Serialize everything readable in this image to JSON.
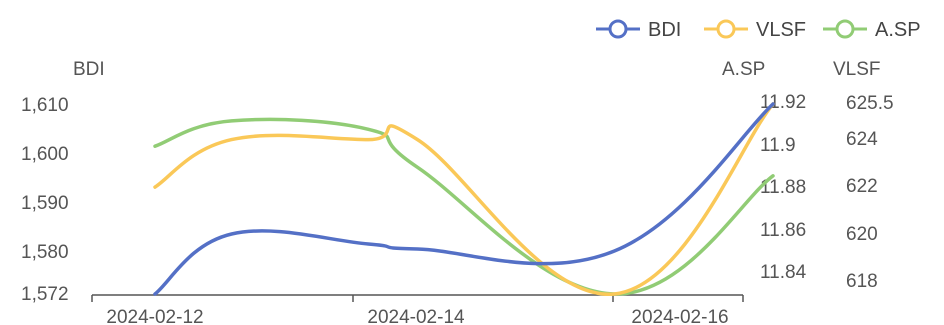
{
  "chart_data": {
    "type": "line",
    "x": [
      "2024-02-12",
      "2024-02-13",
      "2024-02-14",
      "2024-02-15",
      "2024-02-16"
    ],
    "x_tick_labels": [
      "2024-02-12",
      "2024-02-14",
      "2024-02-16"
    ],
    "series": [
      {
        "name": "BDI",
        "axis": "left",
        "color": "#5470c6",
        "points": [
          [
            "2024-02-12",
            1572
          ],
          [
            "2024-02-12 14:00",
            1584
          ],
          [
            "2024-02-13 15:00",
            1582
          ],
          [
            "2024-02-14",
            1581
          ],
          [
            "2024-02-15 12:00",
            1580.6
          ],
          [
            "2024-02-16 17:00",
            1610
          ]
        ]
      },
      {
        "name": "VLSF",
        "axis": "right-outer",
        "color": "#fac858",
        "points": [
          [
            "2024-02-12",
            622
          ],
          [
            "2024-02-12 14:00",
            624
          ],
          [
            "2024-02-13 15:00",
            624
          ],
          [
            "2024-02-14",
            624
          ],
          [
            "2024-02-15 12:00",
            617.5
          ],
          [
            "2024-02-16 17:00",
            625.5
          ]
        ]
      },
      {
        "name": "A.SP",
        "axis": "right-inner",
        "color": "#91cc75",
        "points": [
          [
            "2024-02-12",
            11.9
          ],
          [
            "2024-02-12 14:00",
            11.912
          ],
          [
            "2024-02-13 15:00",
            11.908
          ],
          [
            "2024-02-14",
            11.89
          ],
          [
            "2024-02-15 12:00",
            11.83
          ],
          [
            "2024-02-16 17:00",
            11.886
          ]
        ]
      }
    ],
    "axes": {
      "left": {
        "title": "BDI",
        "ticks": [
          "1,610",
          "1,600",
          "1,590",
          "1,580",
          "1,572"
        ]
      },
      "right_inner": {
        "title": "A.SP",
        "ticks": [
          "11.92",
          "11.9",
          "11.88",
          "11.86",
          "11.84"
        ]
      },
      "right_outer": {
        "title": "VLSF",
        "ticks": [
          "625.5",
          "624",
          "622",
          "620",
          "618"
        ]
      }
    },
    "legend": {
      "position": "top-right",
      "items": [
        "BDI",
        "VLSF",
        "A.SP"
      ]
    },
    "grid": false
  }
}
